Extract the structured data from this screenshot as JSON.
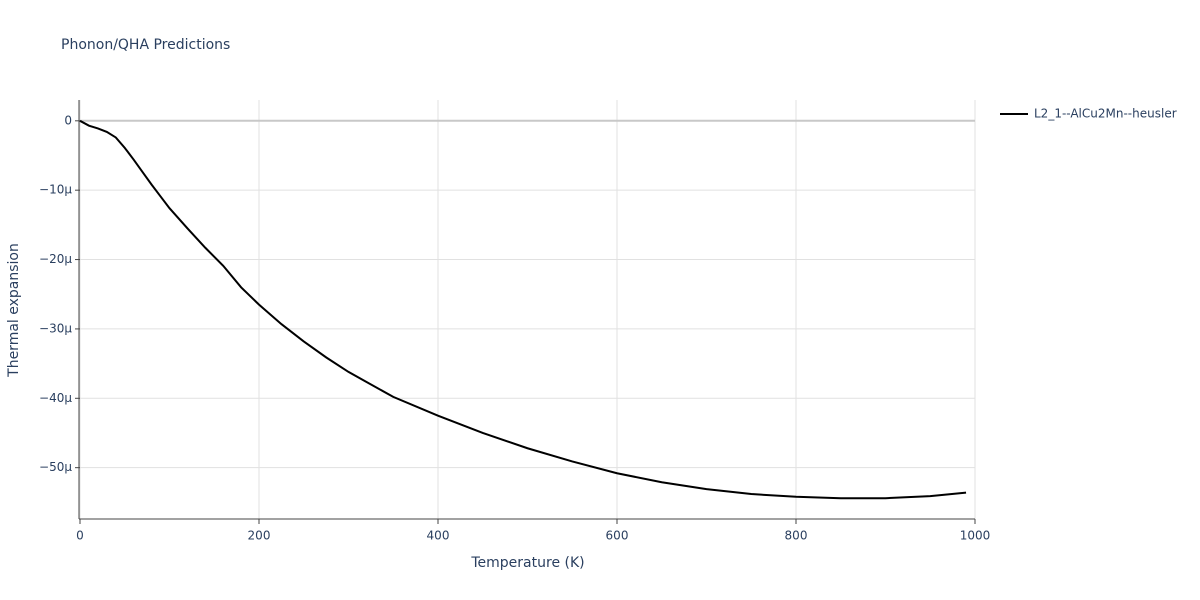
{
  "chart_data": {
    "type": "line",
    "title": "Phonon/QHA Predictions",
    "x_label": "Temperature (K)",
    "y_label": "Thermal expansion",
    "xlim": [
      0,
      1000
    ],
    "xticks": [
      0,
      200,
      400,
      600,
      800,
      1000
    ],
    "ylim": [
      -5.74e-05,
      3e-06
    ],
    "yticks": [
      {
        "value": -5e-05,
        "label": "−50μ"
      },
      {
        "value": -4e-05,
        "label": "−40μ"
      },
      {
        "value": -3e-05,
        "label": "−30μ"
      },
      {
        "value": -2e-05,
        "label": "−20μ"
      },
      {
        "value": -1e-05,
        "label": "−10μ"
      },
      0
    ],
    "grid": true,
    "x": [
      0,
      10,
      20,
      30,
      40,
      50,
      60,
      70,
      80,
      90,
      100,
      120,
      140,
      160,
      180,
      200,
      225,
      250,
      275,
      300,
      350,
      400,
      450,
      500,
      550,
      600,
      650,
      700,
      750,
      800,
      850,
      900,
      950,
      990
    ],
    "series": [
      {
        "name": "L2_1--AlCu2Mn--heusler",
        "color": "#000000",
        "values": [
          0,
          -7e-07,
          -1.1e-06,
          -1.6e-06,
          -2.4e-06,
          -3.9e-06,
          -5.6e-06,
          -7.4e-06,
          -9.2e-06,
          -1.09e-05,
          -1.26e-05,
          -1.55e-05,
          -1.83e-05,
          -2.09e-05,
          -2.4e-05,
          -2.65e-05,
          -2.93e-05,
          -3.18e-05,
          -3.41e-05,
          -3.62e-05,
          -3.98e-05,
          -4.25e-05,
          -4.5e-05,
          -4.72e-05,
          -4.91e-05,
          -5.08e-05,
          -5.21e-05,
          -5.31e-05,
          -5.38e-05,
          -5.42e-05,
          -5.44e-05,
          -5.44e-05,
          -5.41e-05,
          -5.36e-05
        ]
      }
    ]
  }
}
